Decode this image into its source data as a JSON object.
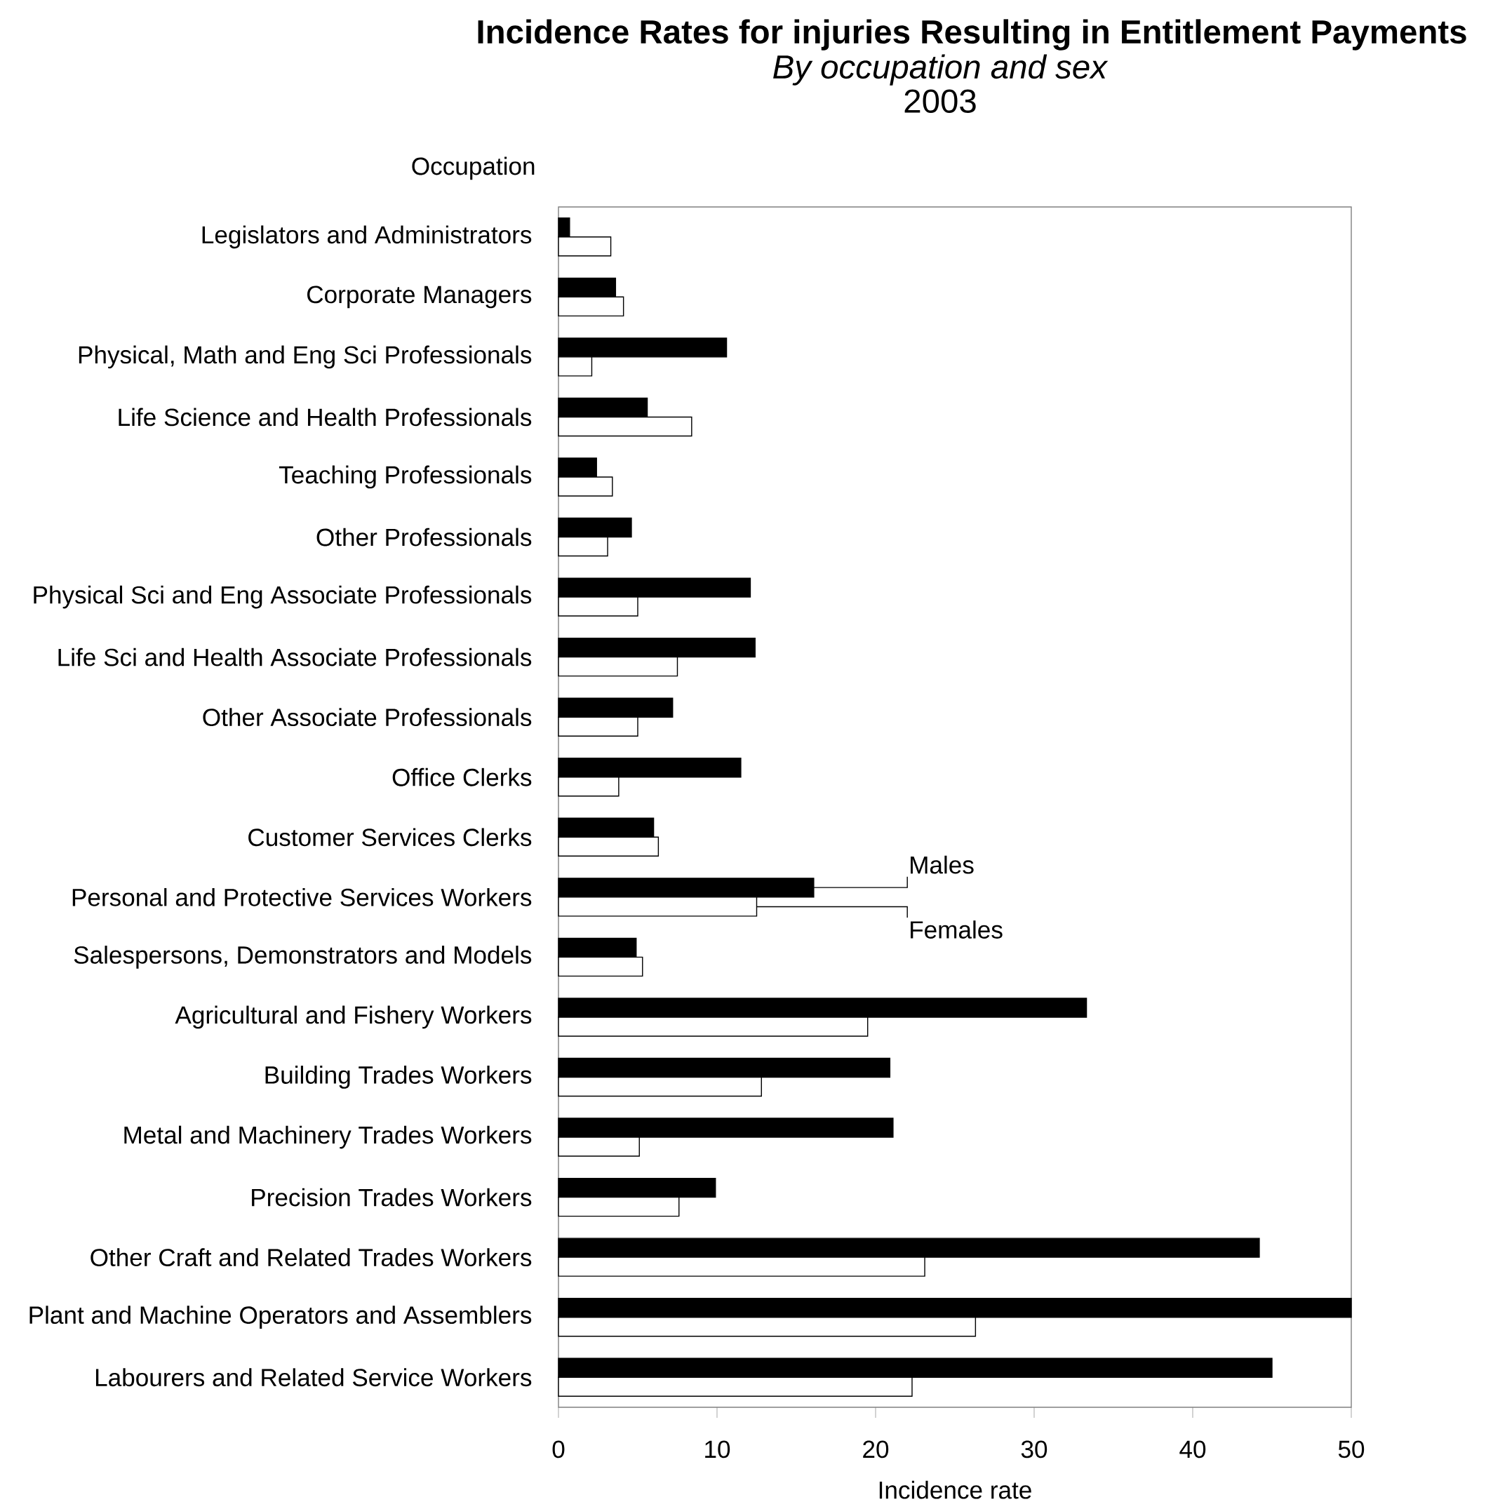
{
  "chart_data": {
    "type": "bar",
    "orientation": "horizontal",
    "title": "Incidence Rates for injuries Resulting in Entitlement Payments",
    "subtitle": "*By occupation and sex*",
    "annotations": [
      "2003"
    ],
    "ylabel": "Occupation",
    "xlabel": "Incidence rate",
    "categories": [
      "Legislators and Administrators",
      "Corporate Managers",
      "Physical, Math and Eng Sci Professionals",
      "Life Science and Health Professionals",
      "Teaching Professionals",
      "Other Professionals",
      "Physical Sci and Eng Associate Professionals",
      "Life Sci and Health Associate Professionals",
      "Other Associate Professionals",
      "Office Clerks",
      "Customer Services Clerks",
      "Personal and Protective Services Workers",
      "Salespersons, Demonstrators and Models",
      "Agricultural and Fishery Workers",
      "Building Trades Workers",
      "Metal and Machinery Trades Workers",
      "Precision Trades Workers",
      "Other Craft and Related Trades Workers",
      "Plant and Machine Operators and Assemblers",
      "Labourers and Related Service Workers"
    ],
    "series": [
      {
        "name": "Males",
        "color": "#000000",
        "values": [
          0.7,
          3.6,
          10.6,
          5.6,
          2.4,
          4.6,
          12.1,
          12.4,
          7.2,
          11.5,
          6.0,
          16.1,
          4.9,
          33.3,
          20.9,
          21.1,
          9.9,
          44.2,
          50.0,
          45.0
        ]
      },
      {
        "name": "Females",
        "color": "#ffffff",
        "values": [
          3.3,
          4.1,
          2.1,
          8.4,
          3.4,
          3.1,
          5.0,
          7.5,
          5.0,
          3.8,
          6.3,
          12.5,
          5.3,
          19.5,
          12.8,
          5.1,
          7.6,
          23.1,
          26.3,
          22.3
        ]
      }
    ],
    "xlim": [
      0,
      50
    ],
    "xticks": [
      0,
      10,
      20,
      30,
      40,
      50
    ],
    "legend": "bottom left",
    "grid": false
  }
}
